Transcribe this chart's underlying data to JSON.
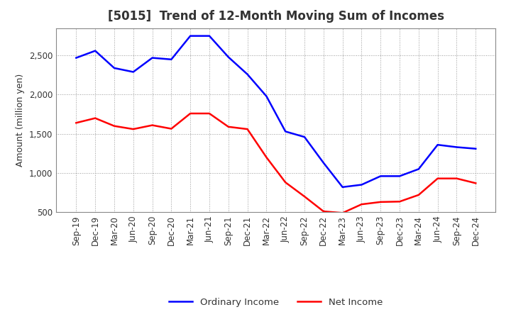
{
  "title": "[5015]  Trend of 12-Month Moving Sum of Incomes",
  "ylabel": "Amount (million yen)",
  "xlabels": [
    "Sep-19",
    "Dec-19",
    "Mar-20",
    "Jun-20",
    "Sep-20",
    "Dec-20",
    "Mar-21",
    "Jun-21",
    "Sep-21",
    "Dec-21",
    "Mar-22",
    "Jun-22",
    "Sep-22",
    "Dec-22",
    "Mar-23",
    "Jun-23",
    "Sep-23",
    "Dec-23",
    "Mar-24",
    "Jun-24",
    "Sep-24",
    "Dec-24"
  ],
  "ordinary_income": [
    2470,
    2560,
    2340,
    2290,
    2470,
    2450,
    2750,
    2750,
    2480,
    2260,
    1980,
    1530,
    1460,
    1130,
    820,
    850,
    960,
    960,
    1050,
    1360,
    1330,
    1310
  ],
  "net_income": [
    1640,
    1700,
    1600,
    1560,
    1610,
    1565,
    1760,
    1760,
    1590,
    1560,
    1200,
    880,
    700,
    510,
    490,
    600,
    630,
    635,
    720,
    930,
    930,
    870
  ],
  "ordinary_color": "#0000ff",
  "net_color": "#ff0000",
  "ylim_min": 500,
  "ylim_max": 2850,
  "yticks": [
    500,
    1000,
    1500,
    2000,
    2500
  ],
  "background_color": "#ffffff",
  "grid_color": "#999999",
  "title_fontsize": 12,
  "title_color": "#333333",
  "axis_label_fontsize": 9,
  "tick_fontsize": 8.5,
  "legend_fontsize": 9.5
}
